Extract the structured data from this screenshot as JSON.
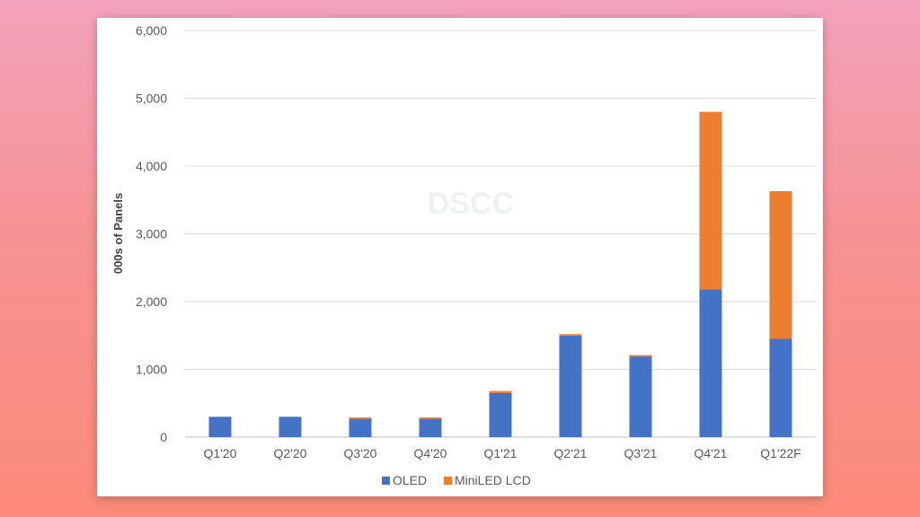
{
  "chart_data": {
    "type": "bar",
    "stacked": true,
    "title": "",
    "xlabel": "",
    "ylabel": "000s of Panels",
    "ylim": [
      0,
      6000
    ],
    "yticks": [
      0,
      1000,
      2000,
      3000,
      4000,
      5000,
      6000
    ],
    "ytick_labels": [
      "0",
      "1,000",
      "2,000",
      "3,000",
      "4,000",
      "5,000",
      "6,000"
    ],
    "categories": [
      "Q1'20",
      "Q2'20",
      "Q3'20",
      "Q4'20",
      "Q1'21",
      "Q2'21",
      "Q3'21",
      "Q4'21",
      "Q1'22F"
    ],
    "series": [
      {
        "name": "OLED",
        "color": "#4472c4",
        "values": [
          300,
          300,
          270,
          270,
          650,
          1500,
          1190,
          2180,
          1450
        ]
      },
      {
        "name": "MiniLED LCD",
        "color": "#ed7d31",
        "values": [
          0,
          0,
          20,
          20,
          30,
          20,
          20,
          2620,
          2180
        ]
      }
    ],
    "grid": true,
    "legend": "bottom",
    "watermark": "DSCC"
  }
}
